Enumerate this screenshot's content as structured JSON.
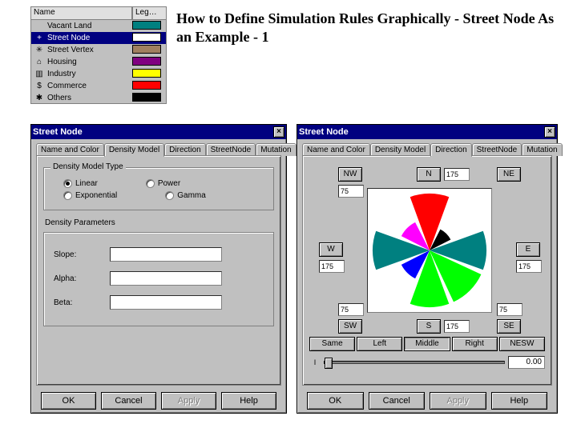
{
  "page": {
    "title": "How to Define Simulation Rules Graphically - Street Node As an Example - 1"
  },
  "legend": {
    "header_name": "Name",
    "header_leg": "Leg…",
    "items": [
      {
        "icon": " ",
        "name": "Vacant Land",
        "color": "#008080",
        "selected": false
      },
      {
        "icon": "+",
        "name": "Street Node",
        "color": "#ffffff",
        "selected": true
      },
      {
        "icon": "✳",
        "name": "Street Vertex",
        "color": "#a08060",
        "selected": false
      },
      {
        "icon": "⌂",
        "name": "Housing",
        "color": "#800080",
        "selected": false
      },
      {
        "icon": "▥",
        "name": "Industry",
        "color": "#ffff00",
        "selected": false
      },
      {
        "icon": "$",
        "name": "Commerce",
        "color": "#ff0000",
        "selected": false
      },
      {
        "icon": "✱",
        "name": "Others",
        "color": "#000000",
        "selected": false
      }
    ]
  },
  "dialog_left": {
    "title": "Street Node",
    "tabs": [
      "Name and Color",
      "Density Model",
      "Direction",
      "StreetNode",
      "Mutation"
    ],
    "active_tab": 1,
    "group_label": "Density Model Type",
    "radios": [
      {
        "label": "Linear",
        "checked": true
      },
      {
        "label": "Power",
        "checked": false
      },
      {
        "label": "Exponential",
        "checked": false
      },
      {
        "label": "Gamma",
        "checked": false
      }
    ],
    "param_label": "Density Parameters",
    "fields": [
      {
        "label": "Slope:",
        "value": ""
      },
      {
        "label": "Alpha:",
        "value": ""
      },
      {
        "label": "Beta:",
        "value": ""
      }
    ],
    "buttons": {
      "ok": "OK",
      "cancel": "Cancel",
      "apply": "Apply",
      "help": "Help"
    }
  },
  "dialog_right": {
    "title": "Street Node",
    "tabs": [
      "Name and Color",
      "Density Model",
      "Direction",
      "StreetNode",
      "Mutation"
    ],
    "active_tab": 2,
    "directions": {
      "NW": {
        "label": "NW",
        "value": "75"
      },
      "N": {
        "label": "N",
        "value": "175"
      },
      "NE": {
        "label": "NE",
        "value": ""
      },
      "W": {
        "label": "W",
        "value": "175"
      },
      "E": {
        "label": "E",
        "value": "175"
      },
      "SW": {
        "label": "SW",
        "value": "75"
      },
      "S": {
        "label": "S",
        "value": "175"
      },
      "SE": {
        "label": "SE",
        "value": "75"
      }
    },
    "wedges": {
      "N": "#ff0000",
      "NE": "#000000",
      "E": "#008080",
      "SE": "#00ff00",
      "S": "#00ff00",
      "SW": "#0000ff",
      "W": "#008080",
      "NW": "#ff00ff"
    },
    "align_buttons": [
      "Same",
      "Left",
      "Middle",
      "Right",
      "NESW"
    ],
    "align_active": 2,
    "slider": {
      "value": "0.00"
    },
    "buttons": {
      "ok": "OK",
      "cancel": "Cancel",
      "apply": "Apply",
      "help": "Help"
    }
  },
  "colors": {
    "desktop": "#ffffff",
    "win_face": "#c0c0c0",
    "titlebar": "#000080"
  }
}
